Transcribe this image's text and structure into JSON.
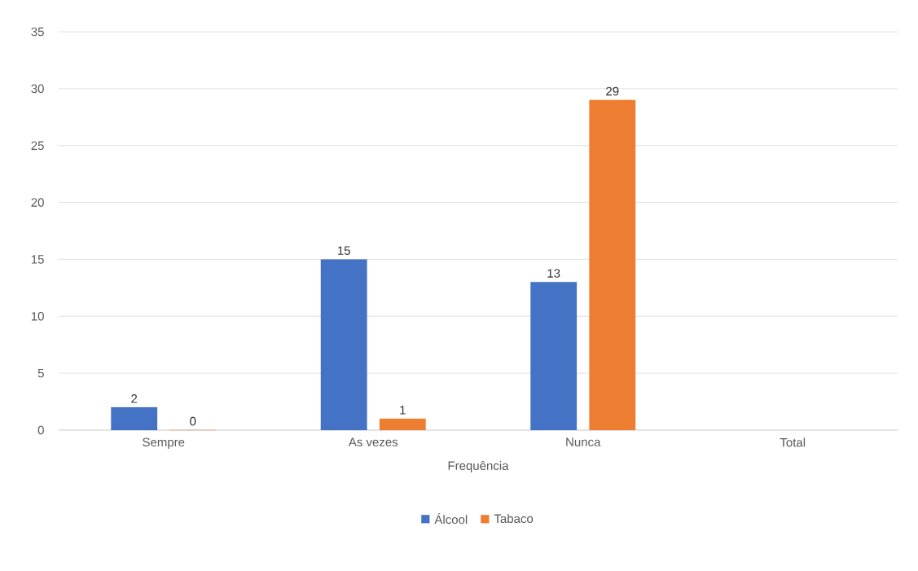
{
  "chart_data": {
    "type": "bar",
    "xlabel": "Frequência",
    "categories": [
      "Sempre",
      "As vezes",
      "Nunca",
      "Total"
    ],
    "series": [
      {
        "name": "Álcool",
        "color": "#4472c4",
        "values": [
          2,
          15,
          13,
          null
        ]
      },
      {
        "name": "Tabaco",
        "color": "#ed7d31",
        "values": [
          0,
          1,
          29,
          null
        ]
      }
    ],
    "ylim": [
      0,
      35
    ],
    "yticks": [
      0,
      5,
      10,
      15,
      20,
      25,
      30,
      35
    ],
    "grid": "y",
    "legend": "bottom",
    "data_labels": true
  }
}
